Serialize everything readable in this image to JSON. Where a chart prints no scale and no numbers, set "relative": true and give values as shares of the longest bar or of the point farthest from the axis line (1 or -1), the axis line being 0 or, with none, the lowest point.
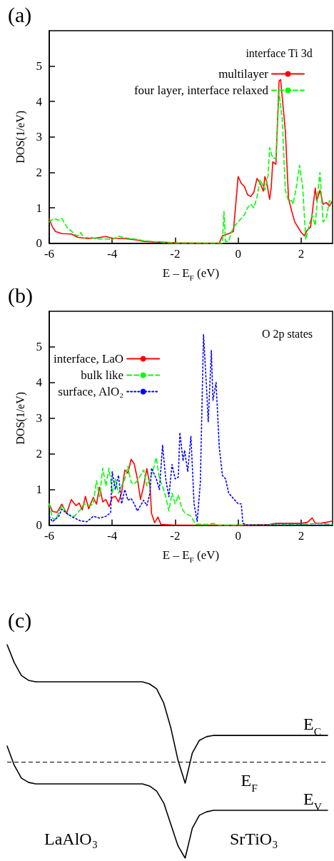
{
  "chart_data": [
    {
      "type": "line",
      "title": "(a)",
      "xlabel": "E – E$_{F}$ (eV)",
      "ylabel": "DOS(1/eV)",
      "annotations": [
        "interface Ti 3d"
      ],
      "xlim": [
        -6,
        3
      ],
      "xticks": [
        -6,
        -4,
        -2,
        0,
        2
      ],
      "ylim": [
        0,
        6
      ],
      "yticks": [
        0,
        1,
        2,
        3,
        4,
        5
      ],
      "grid": false,
      "legend": "top right",
      "series": [
        {
          "name": "multilayer",
          "color": "#ff0000",
          "line_style": "solid",
          "x": [
            -6,
            -5.9,
            -5.8,
            -5.6,
            -5.3,
            -5.1,
            -4.8,
            -4.5,
            -4.2,
            -4,
            -3.6,
            -3.2,
            -3,
            -2.5,
            -2,
            -1,
            -0.6,
            -0.5,
            -0.3,
            -0.15,
            0,
            0.1,
            0.2,
            0.3,
            0.4,
            0.5,
            0.6,
            0.7,
            0.8,
            0.85,
            0.9,
            1,
            1.05,
            1.1,
            1.2,
            1.3,
            1.35,
            1.5,
            1.6,
            1.7,
            1.8,
            2,
            2.1,
            2.2,
            2.3,
            2.45,
            2.5,
            2.6,
            2.7,
            2.8,
            2.9,
            3
          ],
          "values": [
            0.69,
            0.46,
            0.33,
            0.27,
            0.26,
            0.17,
            0.13,
            0.15,
            0.19,
            0.14,
            0.13,
            0.09,
            0.05,
            0.03,
            0.01,
            0,
            0,
            0.21,
            0.27,
            0.33,
            1.88,
            1.69,
            1.6,
            1.37,
            1.32,
            1.44,
            1.83,
            1.69,
            1.47,
            1.88,
            1.76,
            1.24,
            1.56,
            2.3,
            2.23,
            4.58,
            4.62,
            3.17,
            1.27,
            0.91,
            0.6,
            0.31,
            0.21,
            0.38,
            0.45,
            1.56,
            1.2,
            1.5,
            1.1,
            1.15,
            1.05,
            1.2
          ]
        },
        {
          "name": "four layer, interface relaxed",
          "color": "#00ff00",
          "line_style": "dashed",
          "x": [
            -6,
            -5.85,
            -5.7,
            -5.6,
            -5.5,
            -5.4,
            -5.3,
            -5.2,
            -5.1,
            -5,
            -4.9,
            -4.7,
            -4.5,
            -4.2,
            -4,
            -3.8,
            -3.6,
            -3.3,
            -3,
            -2.5,
            -2,
            -0.5,
            -0.45,
            -0.4,
            -0.3,
            -0.2,
            -0.1,
            0,
            0.2,
            0.3,
            0.4,
            0.5,
            0.6,
            0.7,
            0.8,
            0.85,
            0.95,
            1,
            1.1,
            1.2,
            1.3,
            1.4,
            1.5,
            1.6,
            1.7,
            1.75,
            1.85,
            1.95,
            2.05,
            2.15,
            2.25,
            2.35,
            2.45,
            2.55,
            2.6,
            2.7,
            2.8,
            2.9,
            3
          ],
          "values": [
            0.6,
            0.7,
            0.65,
            0.7,
            0.55,
            0.4,
            0.35,
            0.25,
            0.2,
            0.3,
            0.15,
            0.17,
            0.12,
            0.12,
            0.1,
            0.2,
            0.15,
            0.12,
            0.07,
            0.03,
            0,
            0,
            0.9,
            0.05,
            0.05,
            0.35,
            0.5,
            0.6,
            0.8,
            1,
            1.1,
            1,
            1.3,
            1.8,
            1.6,
            1.5,
            1.9,
            2.7,
            2.4,
            2.4,
            4.25,
            3.5,
            1.5,
            1.2,
            1.2,
            1.1,
            1.6,
            2.2,
            1.6,
            0.1,
            0.5,
            0.8,
            0.5,
            1.6,
            2,
            0.6,
            0.7,
            1.2,
            1.15
          ]
        }
      ]
    },
    {
      "type": "line",
      "title": "(b)",
      "xlabel": "E – E$_{F}$ (eV)",
      "ylabel": "DOS(1/eV)",
      "annotations": [
        "O 2p states"
      ],
      "xlim": [
        -6,
        3
      ],
      "xticks": [
        -6,
        -4,
        -2,
        0,
        2
      ],
      "ylim": [
        0,
        6
      ],
      "yticks": [
        0,
        1,
        2,
        3,
        4,
        5
      ],
      "grid": false,
      "legend": "top left",
      "series": [
        {
          "name": "interface, LaO",
          "color": "#ff0000",
          "line_style": "solid",
          "x": [
            -6,
            -5.9,
            -5.75,
            -5.6,
            -5.45,
            -5.3,
            -5.15,
            -5.05,
            -4.95,
            -4.85,
            -4.75,
            -4.6,
            -4.5,
            -4.4,
            -4.3,
            -4.2,
            -4.1,
            -4,
            -3.9,
            -3.8,
            -3.7,
            -3.6,
            -3.5,
            -3.4,
            -3.3,
            -3.2,
            -3.1,
            -3,
            -2.9,
            -2.8,
            -2.75,
            -2.65,
            -2.55,
            -2.45,
            -2,
            -1,
            0,
            1,
            1.2,
            2,
            2.2,
            2.35,
            2.45,
            2.6,
            2.8,
            3
          ],
          "values": [
            0.59,
            0.39,
            0.36,
            0.59,
            0.33,
            0.72,
            0.55,
            0.62,
            0.43,
            0.81,
            0.46,
            0.78,
            0.59,
            1.07,
            0.65,
            0.72,
            0.52,
            0.78,
            0.81,
            0.65,
            0.91,
            1.55,
            1.46,
            1.85,
            1.72,
            1.3,
            0.72,
            1.1,
            1.59,
            1.1,
            0.33,
            0.07,
            0.23,
            0.02,
            0,
            0,
            0,
            0.02,
            0.05,
            0.05,
            0.08,
            0.2,
            0.06,
            0.05,
            0.08,
            0.12
          ]
        },
        {
          "name": "bulk like",
          "color": "#00ff00",
          "line_style": "dashed",
          "x": [
            -6,
            -5.9,
            -5.8,
            -5.6,
            -5.4,
            -5.2,
            -5,
            -4.9,
            -4.7,
            -4.6,
            -4.5,
            -4.4,
            -4.3,
            -4.2,
            -4.1,
            -4,
            -3.9,
            -3.8,
            -3.7,
            -3.6,
            -3.5,
            -3.4,
            -3.3,
            -3.2,
            -3,
            -2.9,
            -2.8,
            -2.7,
            -2.6,
            -2.5,
            -2.4,
            -2.3,
            -2.2,
            -2.1,
            -2,
            -1.9,
            -1.8,
            -1.7,
            -1.5,
            -1.35,
            -1,
            -0.8,
            -0.6,
            0,
            2,
            2.5,
            3
          ],
          "values": [
            0.6,
            0.2,
            0.15,
            0.55,
            0.3,
            0.25,
            0.45,
            0.6,
            0.55,
            0.6,
            1.25,
            0.8,
            1.6,
            1.1,
            1.6,
            0.9,
            1.3,
            0.9,
            1.1,
            1.3,
            1.65,
            1.2,
            1.15,
            1.25,
            1.55,
            1.1,
            1.3,
            1.55,
            1.9,
            1.3,
            1.1,
            0.8,
            0.4,
            0.9,
            0.6,
            0.85,
            0.5,
            0.35,
            0.25,
            0.03,
            0.02,
            0.05,
            0,
            0,
            0.02,
            0.05,
            0.02
          ]
        },
        {
          "name": "surface, AlO₂",
          "color": "#0000ff",
          "line_style": "dotted",
          "x": [
            -6,
            -5.9,
            -5.7,
            -5.6,
            -5.4,
            -5.2,
            -5,
            -4.8,
            -4.6,
            -4.4,
            -4.2,
            -4.05,
            -4,
            -3.9,
            -3.8,
            -3.7,
            -3.6,
            -3.5,
            -3.4,
            -3.3,
            -3.2,
            -3.1,
            -3,
            -2.9,
            -2.8,
            -2.75,
            -2.6,
            -2.5,
            -2.4,
            -2.3,
            -2.2,
            -2.1,
            -2,
            -1.9,
            -1.85,
            -1.75,
            -1.7,
            -1.6,
            -1.5,
            -1.4,
            -1.3,
            -1.2,
            -1.1,
            -1,
            -0.95,
            -0.85,
            -0.8,
            -0.7,
            -0.6,
            -0.5,
            -0.4,
            -0.3,
            -0.15,
            0,
            0.1,
            0.15,
            0.3,
            1,
            2,
            3
          ],
          "values": [
            0.25,
            0.1,
            0.25,
            0.45,
            0.3,
            0.2,
            0.12,
            0.1,
            0.25,
            0.2,
            0.25,
            0.35,
            1.5,
            1,
            1.4,
            0.6,
            1,
            0.7,
            0.75,
            0.6,
            0.4,
            0.55,
            0.7,
            0.55,
            0.9,
            1.6,
            1.3,
            1,
            2.25,
            1.3,
            0.8,
            1.7,
            1.3,
            1.35,
            2.6,
            1.8,
            2.1,
            1.5,
            2.5,
            0.6,
            0.1,
            1.2,
            5.35,
            3.8,
            2.9,
            4.9,
            3.5,
            4,
            2.2,
            1.4,
            1.3,
            0.9,
            0.75,
            0.6,
            0.6,
            0.05,
            0,
            0,
            0,
            0
          ]
        }
      ]
    },
    {
      "type": "line",
      "title": "(c)",
      "relative": true,
      "annotations": [
        "LaAlO₃",
        "SrTiO₃"
      ],
      "categories": [
        null,
        null,
        null,
        null,
        null,
        null,
        null,
        null,
        null,
        null,
        null,
        null,
        null,
        null,
        null,
        null,
        null,
        null,
        null,
        null,
        null,
        null,
        null,
        null,
        null,
        null,
        null,
        null,
        null,
        null,
        null,
        null,
        null,
        null,
        null,
        null,
        null,
        null,
        null,
        null,
        null,
        null,
        null,
        null,
        null,
        null
      ],
      "ref_lines": [
        {
          "axis": "y",
          "value": 0.448,
          "label": "E$_{F}$",
          "color": "#000000",
          "line_style": "dashed"
        }
      ],
      "series": [
        {
          "name": "E$_{C}$",
          "color": "#000000",
          "line_style": "solid",
          "values": [
            1,
            0.916,
            0.856,
            0.833,
            0.826,
            0.826,
            0.826,
            0.826,
            0.826,
            0.826,
            0.826,
            0.826,
            0.826,
            0.826,
            0.826,
            0.826,
            0.826,
            0.826,
            0.826,
            0.826,
            0.816,
            0.793,
            0.726,
            0.609,
            0.458,
            0.351,
            0.492,
            0.552,
            0.569,
            0.575,
            0.575,
            0.575,
            0.575,
            0.575,
            0.575,
            0.575,
            0.575,
            0.575,
            0.575,
            0.575,
            0.575,
            0.575,
            0.575,
            0.575,
            0.575,
            0.575
          ]
        },
        {
          "name": "E$_{V}$",
          "color": "#000000",
          "line_style": "solid",
          "values": [
            0.525,
            0.435,
            0.375,
            0.355,
            0.348,
            0.348,
            0.348,
            0.348,
            0.348,
            0.348,
            0.348,
            0.348,
            0.348,
            0.348,
            0.348,
            0.348,
            0.348,
            0.348,
            0.348,
            0.348,
            0.338,
            0.314,
            0.258,
            0.157,
            0.057,
            0,
            0.14,
            0.201,
            0.217,
            0.224,
            0.224,
            0.224,
            0.224,
            0.224,
            0.224,
            0.224,
            0.224,
            0.224,
            0.224,
            0.224,
            0.224,
            0.224,
            0.224,
            0.224,
            0.224,
            0.224
          ]
        }
      ]
    }
  ]
}
